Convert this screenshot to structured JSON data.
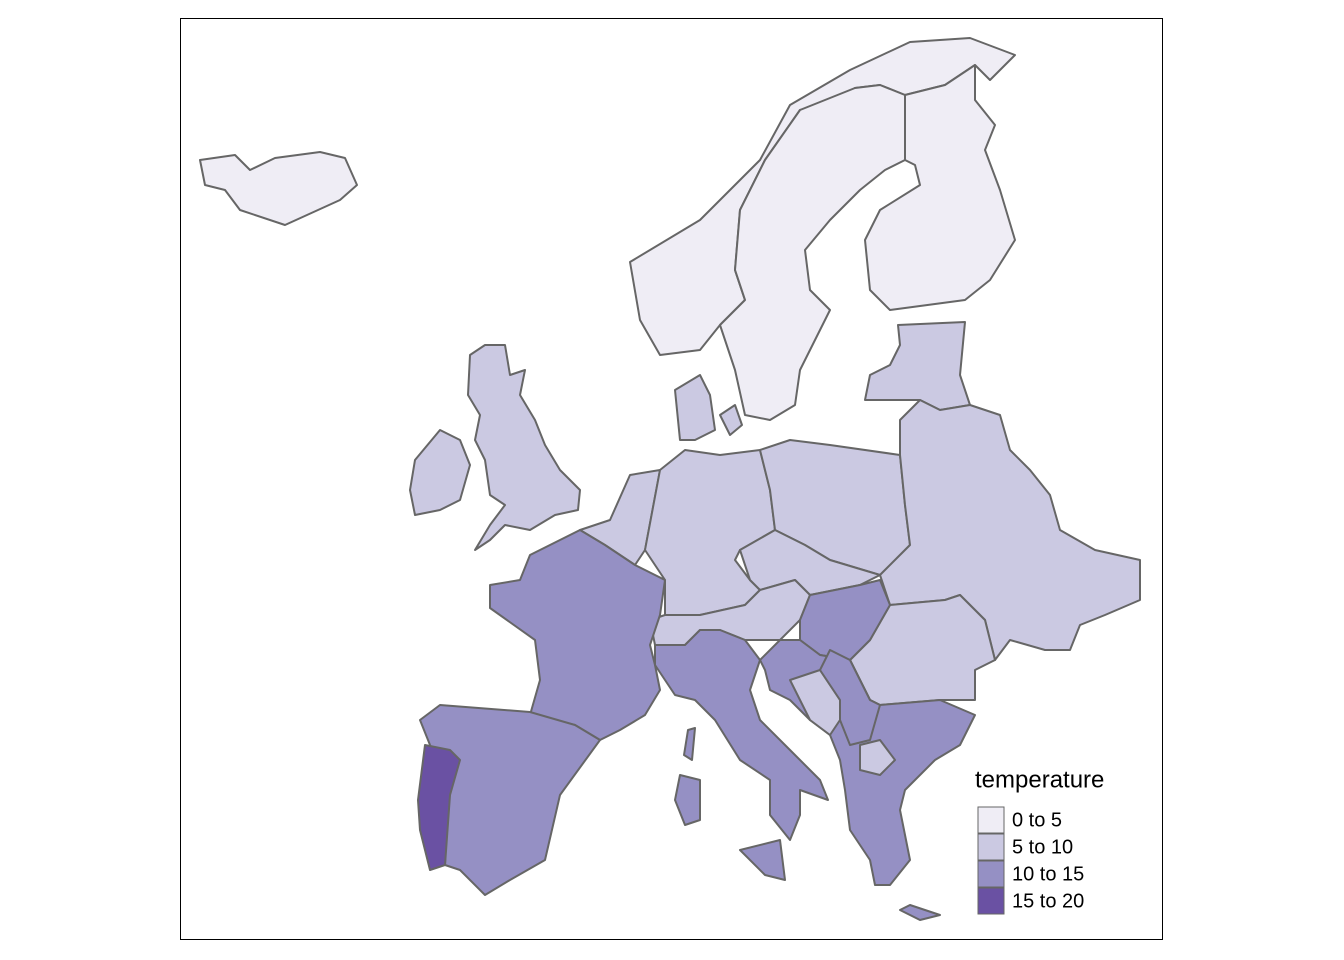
{
  "legend": {
    "title": "temperature",
    "items": [
      {
        "label": "0 to 5",
        "color": "#efedf5"
      },
      {
        "label": "5 to 10",
        "color": "#cbc9e2"
      },
      {
        "label": "10 to 15",
        "color": "#9590c4"
      },
      {
        "label": "15 to 20",
        "color": "#6a51a3"
      }
    ]
  }
}
